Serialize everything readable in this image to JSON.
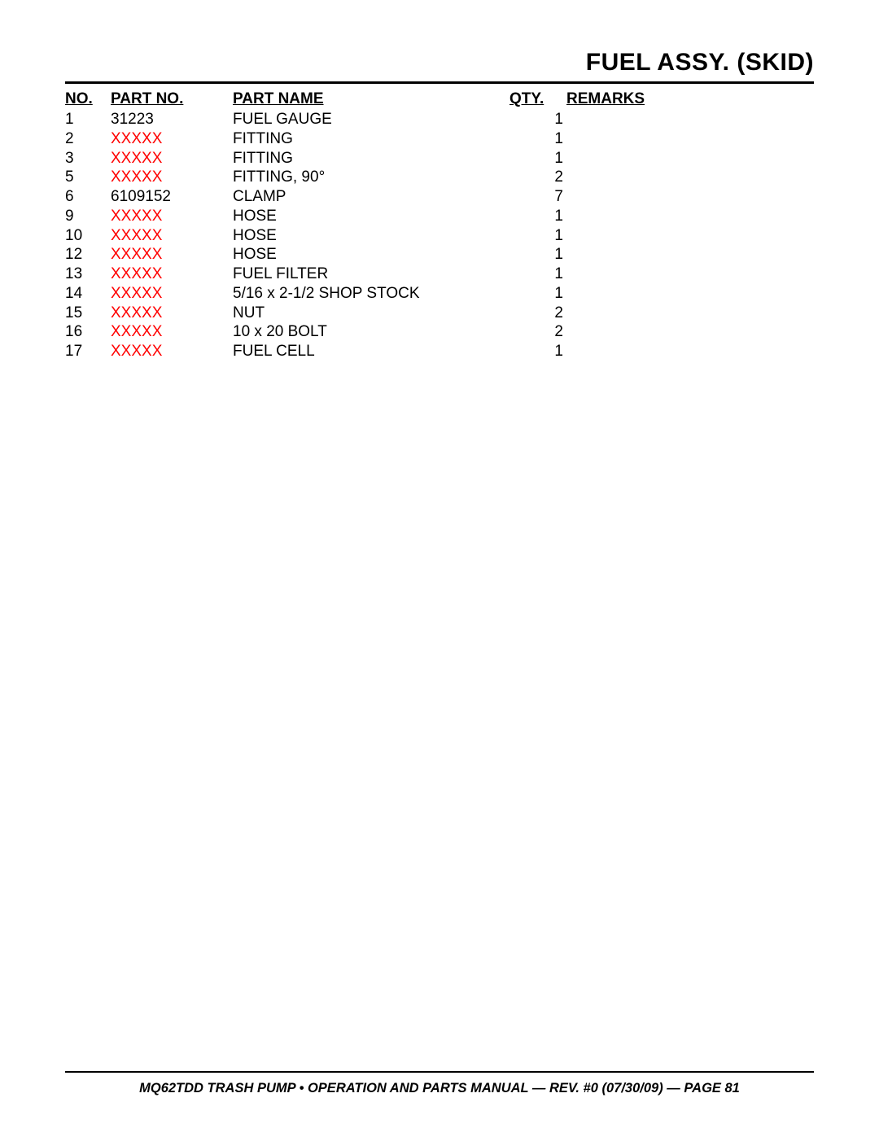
{
  "title": "FUEL ASSY. (SKID)",
  "headers": {
    "no": "NO.",
    "part_no": "PART NO.",
    "part_name": "PART NAME",
    "qty": "QTY.",
    "remarks": "REMARKS"
  },
  "rows": [
    {
      "no": "1",
      "part_no": "31223",
      "part_no_red": false,
      "part_name": "FUEL GAUGE",
      "qty": "1",
      "remarks": ""
    },
    {
      "no": "2",
      "part_no": "XXXXX",
      "part_no_red": true,
      "part_name": "FITTING",
      "qty": "1",
      "remarks": ""
    },
    {
      "no": "3",
      "part_no": "XXXXX",
      "part_no_red": true,
      "part_name": "FITTING",
      "qty": "1",
      "remarks": ""
    },
    {
      "no": "5",
      "part_no": "XXXXX",
      "part_no_red": true,
      "part_name": "FITTING, 90°",
      "qty": "2",
      "remarks": ""
    },
    {
      "no": "6",
      "part_no": "6109152",
      "part_no_red": false,
      "part_name": "CLAMP",
      "qty": "7",
      "remarks": ""
    },
    {
      "no": "9",
      "part_no": "XXXXX",
      "part_no_red": true,
      "part_name": "HOSE",
      "qty": "1",
      "remarks": ""
    },
    {
      "no": "10",
      "part_no": "XXXXX",
      "part_no_red": true,
      "part_name": "HOSE",
      "qty": "1",
      "remarks": ""
    },
    {
      "no": "12",
      "part_no": "XXXXX",
      "part_no_red": true,
      "part_name": "HOSE",
      "qty": "1",
      "remarks": ""
    },
    {
      "no": "13",
      "part_no": "XXXXX",
      "part_no_red": true,
      "part_name": "FUEL FILTER",
      "qty": "1",
      "remarks": ""
    },
    {
      "no": "14",
      "part_no": "XXXXX",
      "part_no_red": true,
      "part_name": "5/16 x 2-1/2 SHOP STOCK",
      "qty": "1",
      "remarks": ""
    },
    {
      "no": "15",
      "part_no": "XXXXX",
      "part_no_red": true,
      "part_name": "NUT",
      "qty": "2",
      "remarks": ""
    },
    {
      "no": "16",
      "part_no": "XXXXX",
      "part_no_red": true,
      "part_name": "10 x 20 BOLT",
      "qty": "2",
      "remarks": ""
    },
    {
      "no": "17",
      "part_no": "XXXXX",
      "part_no_red": true,
      "part_name": "FUEL CELL",
      "qty": "1",
      "remarks": ""
    }
  ],
  "footer": "MQ62TDD TRASH PUMP • OPERATION AND PARTS MANUAL — REV. #0 (07/30/09) — PAGE 81",
  "colors": {
    "text": "#000000",
    "highlight": "#ff0000",
    "background": "#ffffff"
  }
}
